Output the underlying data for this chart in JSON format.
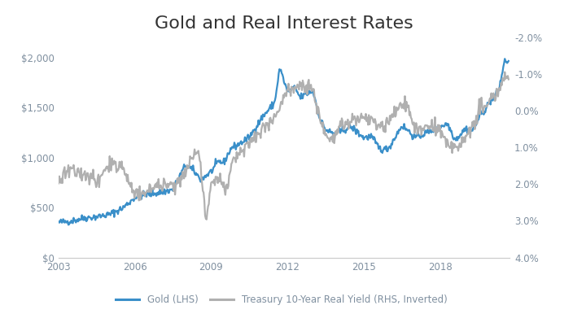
{
  "title": "Gold and Real Interest Rates",
  "title_fontsize": 16,
  "gold_color": "#3a8fc9",
  "yield_color": "#b0b0b0",
  "background_color": "#ffffff",
  "tick_color": "#8090a0",
  "legend_labels": [
    "Gold (LHS)",
    "Treasury 10-Year Real Yield (RHS, Inverted)"
  ],
  "ylim_gold": [
    0,
    2200
  ],
  "ylim_yield_inverted": [
    4.0,
    -2.0
  ],
  "yticks_gold": [
    0,
    500,
    1000,
    1500,
    2000
  ],
  "ytick_gold_labels": [
    "$0",
    "$500",
    "$1,000",
    "$1,500",
    "$2,000"
  ],
  "yticks_yield": [
    4.0,
    3.0,
    2.0,
    1.0,
    0.0,
    -1.0,
    -2.0
  ],
  "ytick_yield_labels": [
    "4.0%",
    "3.0%",
    "2.0%",
    "1.0%",
    "0.0%",
    "-1.0%",
    "-2.0%"
  ],
  "xticks": [
    2003,
    2006,
    2009,
    2012,
    2015,
    2018
  ],
  "xlim": [
    2003,
    2020.75
  ],
  "gold_anchors_t": [
    2003.0,
    2003.5,
    2004.0,
    2004.5,
    2005.0,
    2005.5,
    2006.0,
    2006.5,
    2007.0,
    2007.5,
    2008.0,
    2008.3,
    2008.6,
    2009.0,
    2009.3,
    2009.5,
    2009.8,
    2010.0,
    2010.5,
    2011.0,
    2011.5,
    2011.7,
    2012.0,
    2012.3,
    2012.5,
    2013.0,
    2013.3,
    2013.5,
    2013.8,
    2014.0,
    2014.5,
    2015.0,
    2015.3,
    2015.6,
    2015.8,
    2016.0,
    2016.5,
    2016.8,
    2017.0,
    2017.5,
    2018.0,
    2018.3,
    2018.6,
    2018.8,
    2019.0,
    2019.3,
    2019.6,
    2019.8,
    2020.0,
    2020.3,
    2020.55,
    2020.7
  ],
  "gold_anchors_v": [
    350,
    365,
    395,
    408,
    430,
    490,
    600,
    632,
    650,
    680,
    930,
    870,
    780,
    860,
    960,
    950,
    1100,
    1120,
    1200,
    1400,
    1550,
    1900,
    1660,
    1700,
    1600,
    1670,
    1380,
    1280,
    1240,
    1250,
    1310,
    1200,
    1210,
    1100,
    1075,
    1100,
    1320,
    1260,
    1200,
    1250,
    1310,
    1340,
    1180,
    1230,
    1290,
    1270,
    1430,
    1490,
    1575,
    1660,
    1970,
    1960
  ],
  "yield_anchors_t": [
    2003.0,
    2003.5,
    2004.0,
    2004.5,
    2005.0,
    2005.5,
    2006.0,
    2006.5,
    2007.0,
    2007.5,
    2008.0,
    2008.5,
    2008.8,
    2009.0,
    2009.3,
    2009.6,
    2009.9,
    2010.3,
    2010.6,
    2011.0,
    2011.5,
    2011.8,
    2012.0,
    2012.5,
    2013.0,
    2013.3,
    2013.6,
    2013.9,
    2014.0,
    2014.5,
    2015.0,
    2015.5,
    2015.8,
    2016.0,
    2016.5,
    2016.8,
    2017.0,
    2017.5,
    2018.0,
    2018.5,
    2018.8,
    2019.0,
    2019.3,
    2019.6,
    2019.9,
    2020.0,
    2020.3,
    2020.55,
    2020.7
  ],
  "yield_anchors_v": [
    1.9,
    1.5,
    1.8,
    1.9,
    1.5,
    1.5,
    2.3,
    2.2,
    2.0,
    2.1,
    1.6,
    1.0,
    3.0,
    2.0,
    1.8,
    2.1,
    1.3,
    1.0,
    0.8,
    0.5,
    0.1,
    -0.3,
    -0.6,
    -0.7,
    -0.6,
    0.3,
    0.7,
    0.7,
    0.5,
    0.3,
    0.1,
    0.3,
    0.5,
    0.2,
    -0.2,
    0.0,
    0.5,
    0.4,
    0.5,
    1.0,
    0.9,
    0.7,
    0.5,
    -0.2,
    -0.2,
    -0.3,
    -0.5,
    -0.9,
    -1.0
  ]
}
